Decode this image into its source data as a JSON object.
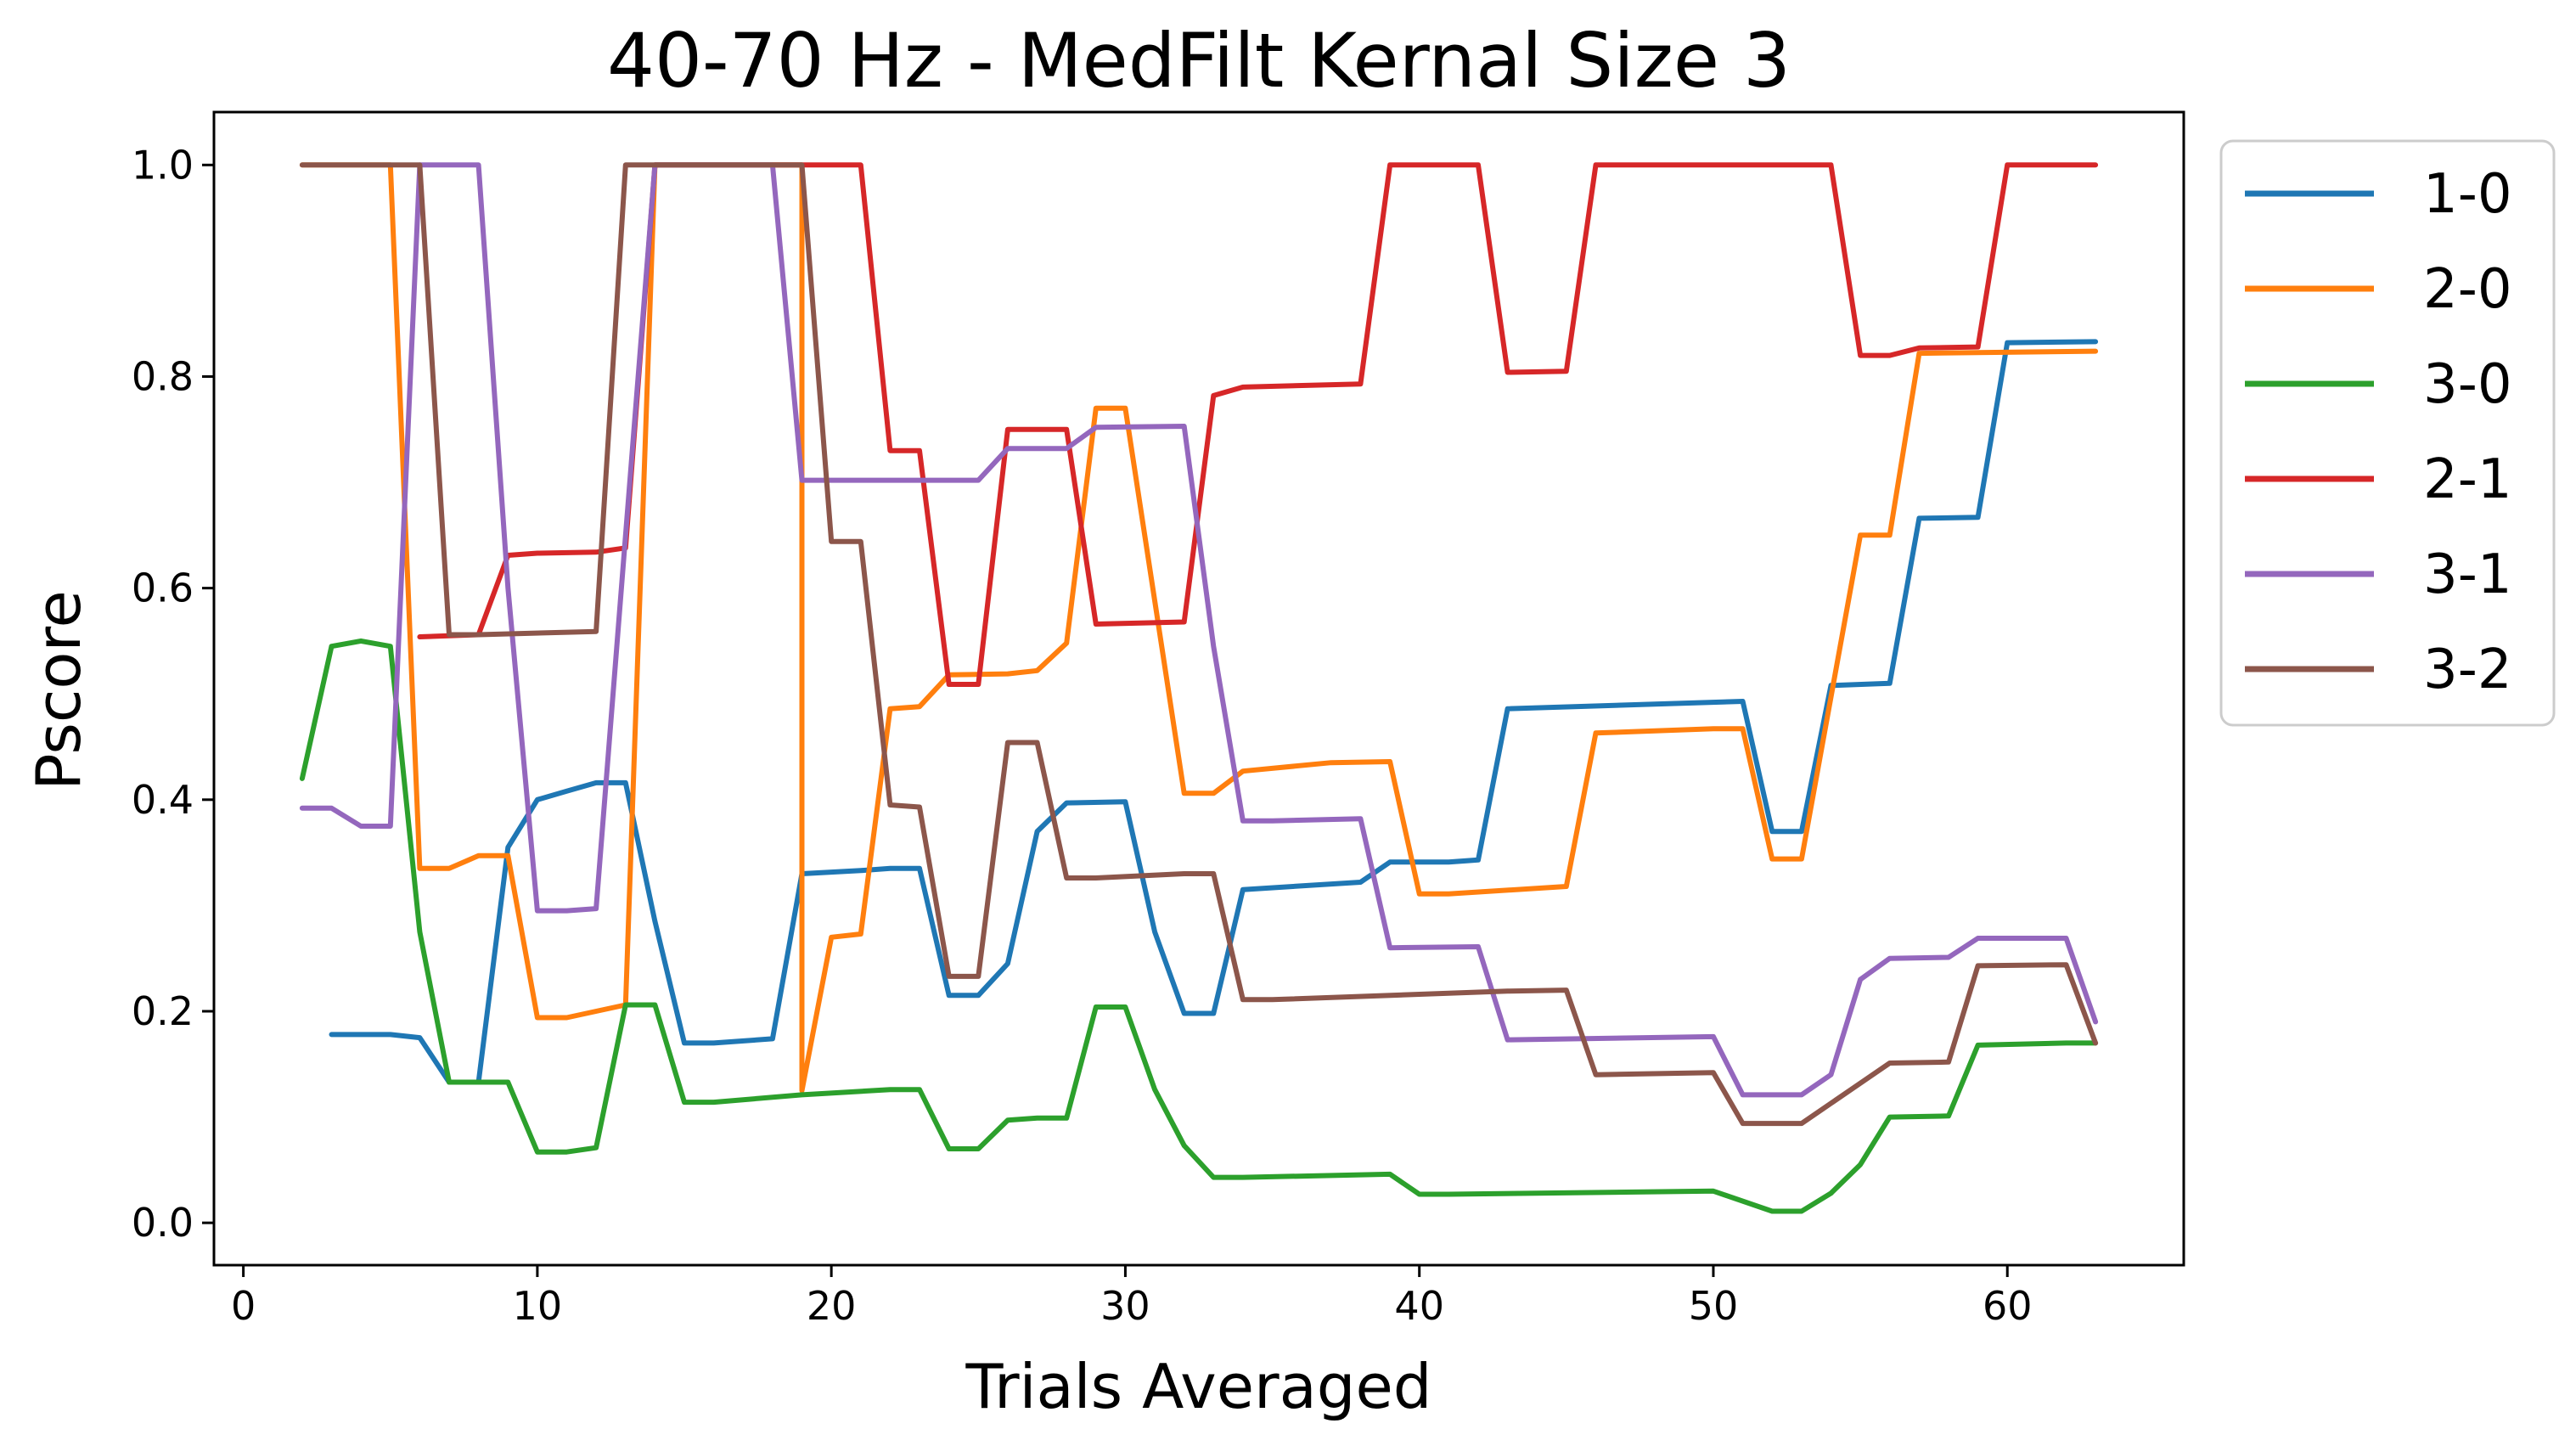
{
  "chart_data": {
    "type": "line",
    "title": "40-70 Hz - MedFilt Kernal Size 3",
    "xlabel": "Trials Averaged",
    "ylabel": "Pscore",
    "xlim": [
      -1,
      66
    ],
    "ylim": [
      -0.04,
      1.05
    ],
    "xticks": [
      0,
      10,
      20,
      30,
      40,
      50,
      60
    ],
    "yticks": [
      0.0,
      0.2,
      0.4,
      0.6,
      0.8,
      1.0
    ],
    "ytick_labels": [
      "0.0",
      "0.2",
      "0.4",
      "0.6",
      "0.8",
      "1.0"
    ],
    "grid": false,
    "legend_position": "outside-top-right",
    "series": [
      {
        "name": "1-0",
        "color": "#1f77b4",
        "points": [
          [
            3,
            0.178
          ],
          [
            5,
            0.178
          ],
          [
            6,
            0.175
          ],
          [
            7,
            0.133
          ],
          [
            8,
            0.133
          ],
          [
            9,
            0.355
          ],
          [
            10,
            0.4
          ],
          [
            11,
            0.408
          ],
          [
            12,
            0.416
          ],
          [
            13,
            0.416
          ],
          [
            14,
            0.285
          ],
          [
            15,
            0.17
          ],
          [
            16,
            0.17
          ],
          [
            18,
            0.174
          ],
          [
            19,
            0.33
          ],
          [
            21,
            0.333
          ],
          [
            22,
            0.335
          ],
          [
            23,
            0.335
          ],
          [
            24,
            0.215
          ],
          [
            25,
            0.215
          ],
          [
            26,
            0.245
          ],
          [
            27,
            0.37
          ],
          [
            28,
            0.397
          ],
          [
            30,
            0.398
          ],
          [
            31,
            0.275
          ],
          [
            32,
            0.198
          ],
          [
            33,
            0.198
          ],
          [
            34,
            0.315
          ],
          [
            38,
            0.322
          ],
          [
            39,
            0.341
          ],
          [
            41,
            0.341
          ],
          [
            42,
            0.343
          ],
          [
            43,
            0.486
          ],
          [
            51,
            0.493
          ],
          [
            52,
            0.37
          ],
          [
            53,
            0.37
          ],
          [
            54,
            0.508
          ],
          [
            56,
            0.51
          ],
          [
            57,
            0.666
          ],
          [
            59,
            0.667
          ],
          [
            60,
            0.832
          ],
          [
            63,
            0.833
          ]
        ]
      },
      {
        "name": "2-0",
        "color": "#ff7f0e",
        "points": [
          [
            2,
            1.0
          ],
          [
            5,
            1.0
          ],
          [
            6,
            0.335
          ],
          [
            7,
            0.335
          ],
          [
            8,
            0.347
          ],
          [
            9,
            0.347
          ],
          [
            10,
            0.194
          ],
          [
            11,
            0.194
          ],
          [
            12,
            0.2
          ],
          [
            13,
            0.206
          ],
          [
            14,
            1.0
          ],
          [
            19,
            1.0
          ],
          [
            19,
            0.125
          ],
          [
            20,
            0.27
          ],
          [
            21,
            0.273
          ],
          [
            22,
            0.486
          ],
          [
            23,
            0.488
          ],
          [
            24,
            0.518
          ],
          [
            26,
            0.519
          ],
          [
            27,
            0.522
          ],
          [
            28,
            0.548
          ],
          [
            29,
            0.77
          ],
          [
            30,
            0.77
          ],
          [
            32,
            0.406
          ],
          [
            33,
            0.406
          ],
          [
            34,
            0.427
          ],
          [
            37,
            0.435
          ],
          [
            39,
            0.436
          ],
          [
            40,
            0.311
          ],
          [
            41,
            0.311
          ],
          [
            45,
            0.318
          ],
          [
            46,
            0.463
          ],
          [
            50,
            0.467
          ],
          [
            51,
            0.467
          ],
          [
            52,
            0.344
          ],
          [
            53,
            0.344
          ],
          [
            55,
            0.65
          ],
          [
            56,
            0.65
          ],
          [
            57,
            0.822
          ],
          [
            63,
            0.824
          ]
        ]
      },
      {
        "name": "3-0",
        "color": "#2ca02c",
        "points": [
          [
            2,
            0.42
          ],
          [
            3,
            0.545
          ],
          [
            4,
            0.55
          ],
          [
            5,
            0.545
          ],
          [
            6,
            0.275
          ],
          [
            7,
            0.133
          ],
          [
            9,
            0.133
          ],
          [
            10,
            0.067
          ],
          [
            11,
            0.067
          ],
          [
            12,
            0.071
          ],
          [
            13,
            0.206
          ],
          [
            14,
            0.206
          ],
          [
            15,
            0.114
          ],
          [
            16,
            0.114
          ],
          [
            19,
            0.121
          ],
          [
            22,
            0.126
          ],
          [
            23,
            0.126
          ],
          [
            24,
            0.07
          ],
          [
            25,
            0.07
          ],
          [
            26,
            0.097
          ],
          [
            27,
            0.099
          ],
          [
            28,
            0.099
          ],
          [
            29,
            0.204
          ],
          [
            30,
            0.204
          ],
          [
            31,
            0.126
          ],
          [
            32,
            0.073
          ],
          [
            33,
            0.043
          ],
          [
            34,
            0.043
          ],
          [
            39,
            0.046
          ],
          [
            40,
            0.027
          ],
          [
            41,
            0.027
          ],
          [
            50,
            0.03
          ],
          [
            52,
            0.011
          ],
          [
            53,
            0.011
          ],
          [
            54,
            0.028
          ],
          [
            55,
            0.055
          ],
          [
            56,
            0.1
          ],
          [
            58,
            0.101
          ],
          [
            59,
            0.168
          ],
          [
            62,
            0.17
          ],
          [
            63,
            0.17
          ]
        ]
      },
      {
        "name": "2-1",
        "color": "#d62728",
        "points": [
          [
            6,
            0.554
          ],
          [
            8,
            0.556
          ],
          [
            9,
            0.631
          ],
          [
            10,
            0.633
          ],
          [
            12,
            0.634
          ],
          [
            13,
            0.638
          ],
          [
            14,
            1.0
          ],
          [
            21,
            1.0
          ],
          [
            22,
            0.73
          ],
          [
            23,
            0.73
          ],
          [
            24,
            0.509
          ],
          [
            25,
            0.509
          ],
          [
            26,
            0.75
          ],
          [
            28,
            0.75
          ],
          [
            29,
            0.566
          ],
          [
            32,
            0.568
          ],
          [
            33,
            0.782
          ],
          [
            34,
            0.79
          ],
          [
            38,
            0.793
          ],
          [
            39,
            1.0
          ],
          [
            42,
            1.0
          ],
          [
            43,
            0.804
          ],
          [
            45,
            0.805
          ],
          [
            46,
            1.0
          ],
          [
            54,
            1.0
          ],
          [
            55,
            0.82
          ],
          [
            56,
            0.82
          ],
          [
            57,
            0.827
          ],
          [
            59,
            0.828
          ],
          [
            60,
            1.0
          ],
          [
            63,
            1.0
          ]
        ]
      },
      {
        "name": "3-1",
        "color": "#9467bd",
        "points": [
          [
            2,
            0.392
          ],
          [
            3,
            0.392
          ],
          [
            4,
            0.375
          ],
          [
            5,
            0.375
          ],
          [
            6,
            1.0
          ],
          [
            8,
            1.0
          ],
          [
            9,
            0.6
          ],
          [
            10,
            0.295
          ],
          [
            11,
            0.295
          ],
          [
            12,
            0.297
          ],
          [
            13,
            0.65
          ],
          [
            14,
            1.0
          ],
          [
            18,
            1.0
          ],
          [
            19,
            0.702
          ],
          [
            25,
            0.702
          ],
          [
            26,
            0.732
          ],
          [
            28,
            0.732
          ],
          [
            29,
            0.752
          ],
          [
            32,
            0.753
          ],
          [
            33,
            0.545
          ],
          [
            34,
            0.38
          ],
          [
            35,
            0.38
          ],
          [
            38,
            0.382
          ],
          [
            39,
            0.26
          ],
          [
            42,
            0.261
          ],
          [
            43,
            0.173
          ],
          [
            50,
            0.176
          ],
          [
            51,
            0.121
          ],
          [
            53,
            0.121
          ],
          [
            54,
            0.14
          ],
          [
            55,
            0.23
          ],
          [
            56,
            0.25
          ],
          [
            58,
            0.251
          ],
          [
            59,
            0.269
          ],
          [
            62,
            0.269
          ],
          [
            63,
            0.19
          ]
        ]
      },
      {
        "name": "3-2",
        "color": "#8c564b",
        "points": [
          [
            2,
            1.0
          ],
          [
            6,
            1.0
          ],
          [
            7,
            0.556
          ],
          [
            8,
            0.556
          ],
          [
            12,
            0.559
          ],
          [
            13,
            1.0
          ],
          [
            19,
            1.0
          ],
          [
            20,
            0.644
          ],
          [
            21,
            0.644
          ],
          [
            22,
            0.395
          ],
          [
            23,
            0.393
          ],
          [
            24,
            0.233
          ],
          [
            25,
            0.233
          ],
          [
            26,
            0.454
          ],
          [
            27,
            0.454
          ],
          [
            28,
            0.326
          ],
          [
            29,
            0.326
          ],
          [
            32,
            0.33
          ],
          [
            33,
            0.33
          ],
          [
            34,
            0.211
          ],
          [
            35,
            0.211
          ],
          [
            43,
            0.219
          ],
          [
            45,
            0.22
          ],
          [
            46,
            0.14
          ],
          [
            50,
            0.142
          ],
          [
            51,
            0.094
          ],
          [
            53,
            0.094
          ],
          [
            56,
            0.151
          ],
          [
            58,
            0.152
          ],
          [
            59,
            0.243
          ],
          [
            62,
            0.244
          ],
          [
            63,
            0.17
          ]
        ]
      }
    ]
  }
}
